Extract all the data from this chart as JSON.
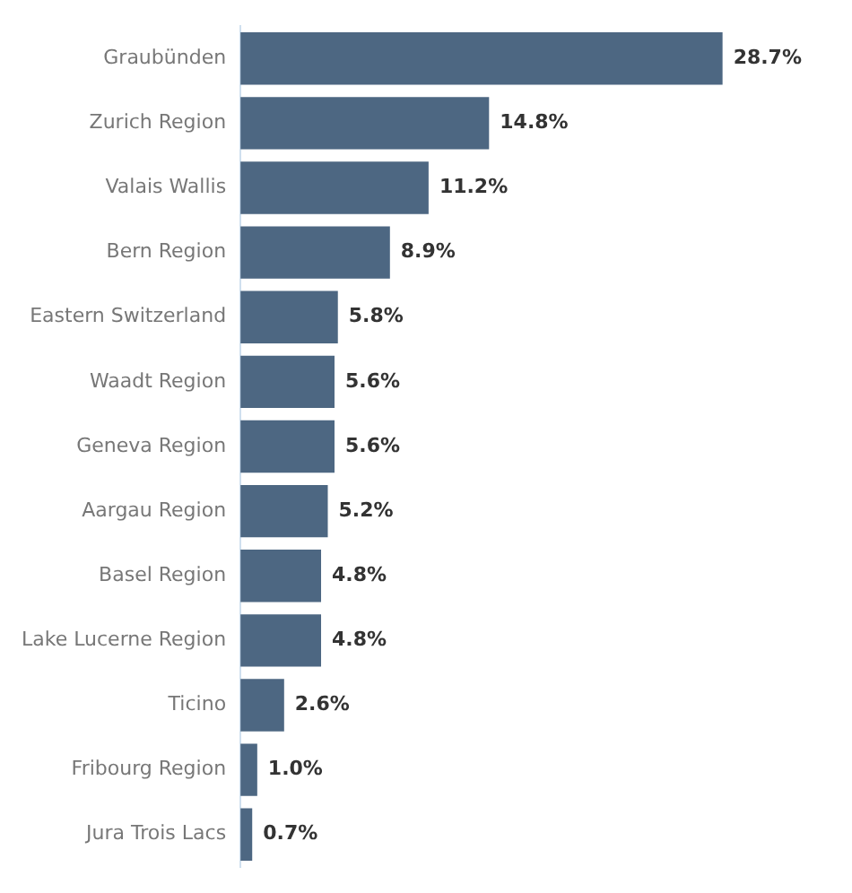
{
  "chart_data": {
    "type": "bar",
    "orientation": "horizontal",
    "categories": [
      "Graubünden",
      "Zurich Region",
      "Valais Wallis",
      "Bern Region",
      "Eastern Switzerland",
      "Waadt Region",
      "Geneva Region",
      "Aargau Region",
      "Basel Region",
      "Lake Lucerne Region",
      "Ticino",
      "Fribourg Region",
      "Jura Trois Lacs"
    ],
    "values": [
      28.7,
      14.8,
      11.2,
      8.9,
      5.8,
      5.6,
      5.6,
      5.2,
      4.8,
      4.8,
      2.6,
      1.0,
      0.7
    ],
    "value_labels": [
      "28.7%",
      "14.8%",
      "11.2%",
      "8.9%",
      "5.8%",
      "5.6%",
      "5.6%",
      "5.2%",
      "4.8%",
      "4.8%",
      "2.6%",
      "1.0%",
      "0.7%"
    ],
    "color": "#4d6782",
    "tick_labels": "y",
    "legend": false
  }
}
